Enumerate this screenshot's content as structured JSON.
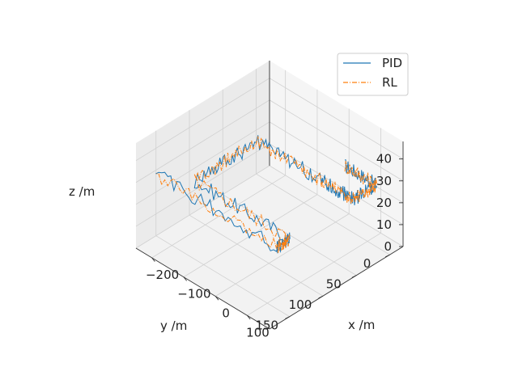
{
  "chart_data": {
    "type": "line",
    "projection": "3d",
    "title": "",
    "xlabel": "x /m",
    "ylabel": "y /m",
    "zlabel": "z /m",
    "xlim": [
      -250,
      170
    ],
    "ylim": [
      -20,
      180
    ],
    "zlim": [
      0,
      48
    ],
    "x_ticks": [
      -200,
      -100,
      0,
      100
    ],
    "x_tick_labels": [
      "−200",
      "−100",
      "0",
      "100"
    ],
    "y_ticks": [
      0,
      50,
      100,
      150
    ],
    "y_tick_labels": [
      "0",
      "50",
      "100",
      "150"
    ],
    "z_ticks": [
      0,
      10,
      20,
      30,
      40
    ],
    "z_tick_labels": [
      "0",
      "10",
      "20",
      "30",
      "40"
    ],
    "grid": true,
    "legend_position": "top-right",
    "series": [
      {
        "name": "PID",
        "color": "#1f77b4",
        "style": "solid",
        "points": [
          [
            50,
            10,
            32
          ],
          [
            150,
            10,
            32
          ],
          [
            150,
            45,
            32
          ],
          [
            50,
            45,
            32
          ],
          [
            -150,
            45,
            32
          ],
          [
            -150,
            140,
            32
          ],
          [
            150,
            140,
            32
          ],
          [
            150,
            160,
            32
          ],
          [
            -230,
            160,
            32
          ]
        ]
      },
      {
        "name": "RL",
        "color": "#ff7f0e",
        "style": "dashdot",
        "points": [
          [
            50,
            10,
            32
          ],
          [
            150,
            10,
            32
          ],
          [
            150,
            45,
            32
          ],
          [
            50,
            45,
            32
          ],
          [
            -150,
            45,
            32
          ],
          [
            -150,
            140,
            32
          ],
          [
            150,
            140,
            32
          ],
          [
            150,
            160,
            32
          ],
          [
            -230,
            160,
            32
          ]
        ]
      }
    ]
  }
}
